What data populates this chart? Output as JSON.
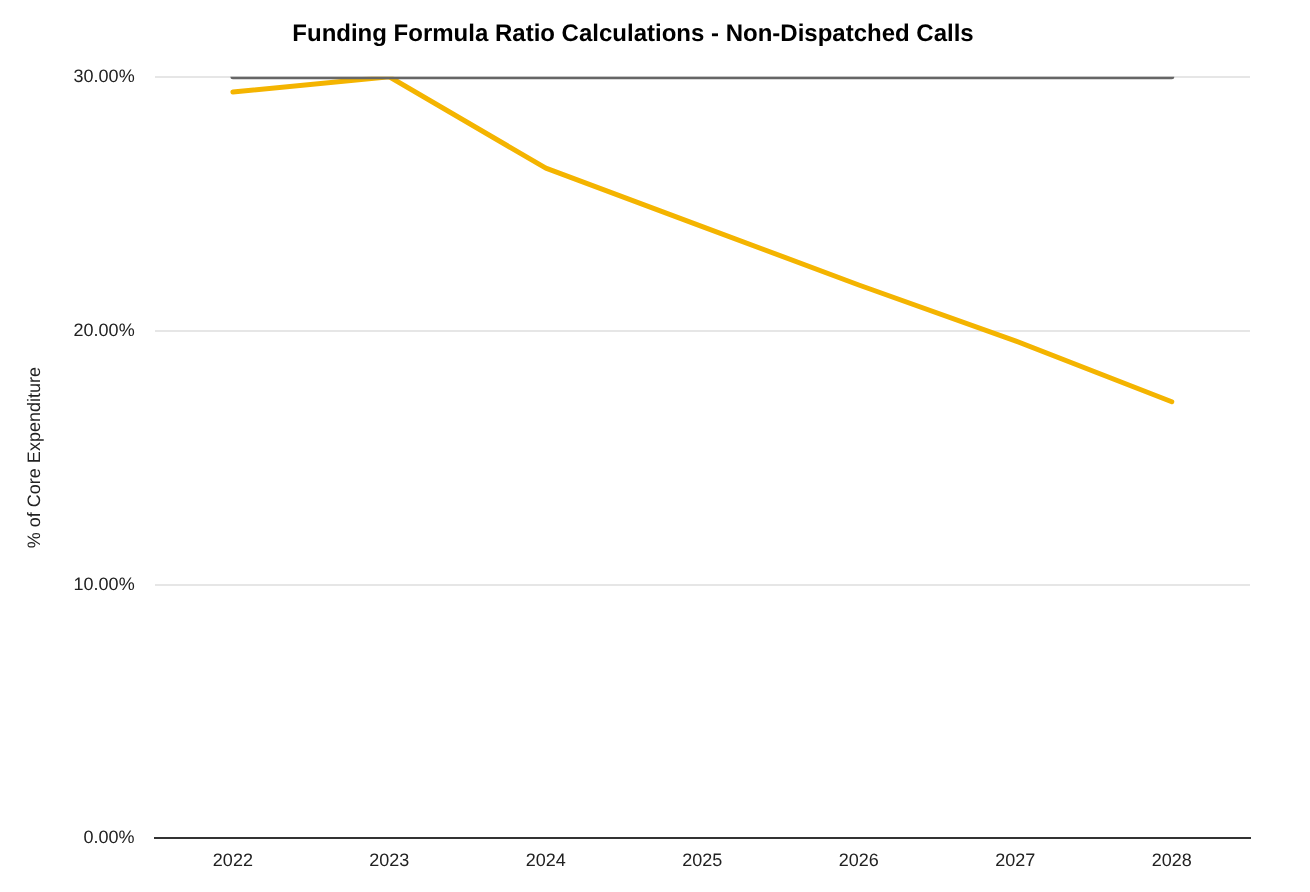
{
  "chart_data": {
    "type": "line",
    "title": "Funding Formula Ratio Calculations - Non-Dispatched Calls",
    "ylabel": "% of Core Expenditure",
    "categories": [
      "2022",
      "2023",
      "2024",
      "2025",
      "2026",
      "2027",
      "2028"
    ],
    "series": [
      {
        "color": "#666666",
        "values": [
          30,
          30,
          30,
          30,
          30,
          30,
          30
        ]
      },
      {
        "color": "#f4b400",
        "values": [
          29.4,
          30,
          26.4,
          24.1,
          21.8,
          19.6,
          17.2
        ]
      }
    ],
    "ylim": [
      0,
      30
    ],
    "yticks": [
      {
        "value": 0,
        "label": "0.00%"
      },
      {
        "value": 10,
        "label": "10.00%"
      },
      {
        "value": 20,
        "label": "20.00%"
      },
      {
        "value": 30,
        "label": "30.00%"
      }
    ],
    "grid": "y",
    "legend": false,
    "marker": "none",
    "line_style": "solid"
  }
}
